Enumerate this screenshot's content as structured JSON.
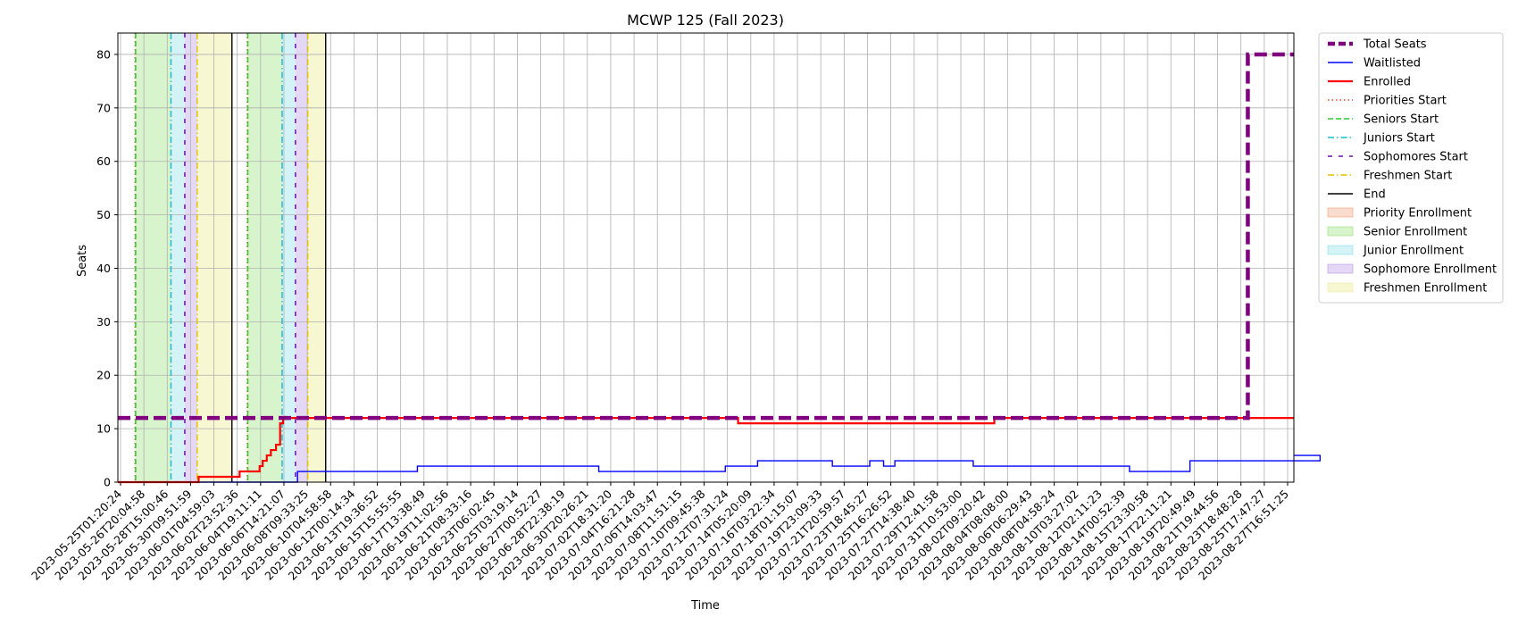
{
  "chart_data": {
    "type": "line",
    "title": "MCWP 125 (Fall 2023)",
    "xlabel": "Time",
    "ylabel": "Seats",
    "xlim": [
      "2023-05-25T01:20:24",
      "2023-08-28T16:51:25"
    ],
    "ylim": [
      0,
      84
    ],
    "yticks": [
      0,
      10,
      20,
      30,
      40,
      50,
      60,
      70,
      80
    ],
    "grid": true,
    "legend_position": "outside-right",
    "xtick_labels": [
      "2023-05-25T01:20:24",
      "2023-05-26T20:04:58",
      "2023-05-28T15:00:46",
      "2023-05-30T09:51:59",
      "2023-06-01T04:59:03",
      "2023-06-02T23:52:36",
      "2023-06-04T19:11:11",
      "2023-06-06T14:21:07",
      "2023-06-08T09:33:25",
      "2023-06-10T04:58:58",
      "2023-06-12T00:14:34",
      "2023-06-13T19:36:52",
      "2023-06-15T15:55:55",
      "2023-06-17T13:38:49",
      "2023-06-19T11:02:56",
      "2023-06-21T08:33:16",
      "2023-06-23T06:02:45",
      "2023-06-25T03:19:14",
      "2023-06-27T00:52:27",
      "2023-06-28T22:38:19",
      "2023-06-30T20:26:21",
      "2023-07-02T18:31:20",
      "2023-07-04T16:21:28",
      "2023-07-06T14:03:47",
      "2023-07-08T11:51:15",
      "2023-07-10T09:45:38",
      "2023-07-12T07:31:24",
      "2023-07-14T05:20:09",
      "2023-07-16T03:22:34",
      "2023-07-18T01:15:07",
      "2023-07-19T23:09:33",
      "2023-07-21T20:59:57",
      "2023-07-23T18:45:27",
      "2023-07-25T16:26:52",
      "2023-07-27T14:38:40",
      "2023-07-29T12:41:58",
      "2023-07-31T10:53:00",
      "2023-08-02T09:20:42",
      "2023-08-04T08:08:00",
      "2023-08-06T06:29:43",
      "2023-08-08T04:58:24",
      "2023-08-10T03:27:02",
      "2023-08-12T02:11:23",
      "2023-08-14T00:52:39",
      "2023-08-15T23:30:58",
      "2023-08-17T22:11:21",
      "2023-08-19T20:49:49",
      "2023-08-21T19:44:56",
      "2023-08-23T18:48:28",
      "2023-08-25T17:47:27",
      "2023-08-27T16:51:25"
    ],
    "series": [
      {
        "name": "Total Seats",
        "color": "#800080",
        "style": "dashed-thick",
        "points": [
          [
            "2023-05-25T01:20:24",
            12
          ],
          [
            "2023-08-24T23:00:00",
            12
          ],
          [
            "2023-08-24T23:00:00",
            80
          ],
          [
            "2023-08-28T16:51:25",
            80
          ]
        ]
      },
      {
        "name": "Waitlisted",
        "color": "#0000ff",
        "style": "solid",
        "points": [
          [
            "2023-05-25T01:20:24",
            0
          ],
          [
            "2023-06-08T16:00:00",
            0
          ],
          [
            "2023-06-08T16:00:00",
            2
          ],
          [
            "2023-06-18T10:00:00",
            2
          ],
          [
            "2023-06-18T10:00:00",
            3
          ],
          [
            "2023-07-03T04:00:00",
            3
          ],
          [
            "2023-07-03T04:00:00",
            2
          ],
          [
            "2023-07-13T11:00:00",
            2
          ],
          [
            "2023-07-13T11:00:00",
            3
          ],
          [
            "2023-07-16T02:00:00",
            3
          ],
          [
            "2023-07-16T02:00:00",
            4
          ],
          [
            "2023-07-22T04:00:00",
            4
          ],
          [
            "2023-07-22T04:00:00",
            3
          ],
          [
            "2023-07-25T05:00:00",
            3
          ],
          [
            "2023-07-25T05:00:00",
            4
          ],
          [
            "2023-07-26T08:00:00",
            4
          ],
          [
            "2023-07-26T08:00:00",
            3
          ],
          [
            "2023-07-27T06:00:00",
            3
          ],
          [
            "2023-07-27T06:00:00",
            4
          ],
          [
            "2023-08-02T15:00:00",
            4
          ],
          [
            "2023-08-02T15:00:00",
            3
          ],
          [
            "2023-08-15T08:00:00",
            3
          ],
          [
            "2023-08-15T08:00:00",
            2
          ],
          [
            "2023-08-20T06:00:00",
            2
          ],
          [
            "2023-08-20T06:00:00",
            4
          ],
          [
            "2023-08-30T20:00:00",
            4
          ],
          [
            "2023-08-30T20:00:00",
            5
          ],
          [
            "2023-08-28T16:51:25",
            5
          ]
        ]
      },
      {
        "name": "Enrolled",
        "color": "#ff0000",
        "style": "solid-thick",
        "points": [
          [
            "2023-05-25T01:20:24",
            0
          ],
          [
            "2023-05-31T15:00:00",
            0
          ],
          [
            "2023-05-31T15:00:00",
            1
          ],
          [
            "2023-06-03T23:00:00",
            1
          ],
          [
            "2023-06-03T23:00:00",
            2
          ],
          [
            "2023-06-05T14:00:00",
            2
          ],
          [
            "2023-06-05T14:00:00",
            3
          ],
          [
            "2023-06-05T20:00:00",
            3
          ],
          [
            "2023-06-05T20:00:00",
            4
          ],
          [
            "2023-06-06T04:00:00",
            4
          ],
          [
            "2023-06-06T04:00:00",
            5
          ],
          [
            "2023-06-06T12:00:00",
            5
          ],
          [
            "2023-06-06T12:00:00",
            6
          ],
          [
            "2023-06-06T22:00:00",
            6
          ],
          [
            "2023-06-06T22:00:00",
            7
          ],
          [
            "2023-06-07T06:00:00",
            7
          ],
          [
            "2023-06-07T06:00:00",
            11
          ],
          [
            "2023-06-07T12:00:00",
            11
          ],
          [
            "2023-06-07T12:00:00",
            12
          ],
          [
            "2023-07-14T12:00:00",
            12
          ],
          [
            "2023-07-14T12:00:00",
            11
          ],
          [
            "2023-08-04T08:08:00",
            11
          ],
          [
            "2023-08-04T08:08:00",
            12
          ],
          [
            "2023-08-28T16:51:25",
            12
          ]
        ]
      }
    ],
    "vlines": [
      {
        "name": "Priorities Start",
        "color": "#ff3d1f",
        "style": "dotted",
        "x": [
          "2023-05-26T11:00:00",
          "2023-06-04T14:00:00"
        ]
      },
      {
        "name": "Seniors Start",
        "color": "#2ecc2e",
        "style": "dashed",
        "x": [
          "2023-05-26T12:00:00",
          "2023-06-04T15:00:00"
        ]
      },
      {
        "name": "Juniors Start",
        "color": "#17becf",
        "style": "dashdot",
        "x": [
          "2023-05-29T09:00:00",
          "2023-06-07T10:00:00"
        ]
      },
      {
        "name": "Sophomores Start",
        "color": "#6a0dad",
        "style": "loosedash",
        "x": [
          "2023-05-30T12:00:00",
          "2023-06-08T12:00:00"
        ]
      },
      {
        "name": "Freshmen Start",
        "color": "#e5c100",
        "style": "dashdot",
        "x": [
          "2023-05-31T12:00:00",
          "2023-06-09T12:00:00"
        ]
      },
      {
        "name": "End",
        "color": "#000000",
        "style": "solid",
        "x": [
          "2023-06-03T08:00:00",
          "2023-06-10T23:00:00"
        ]
      }
    ],
    "bands": [
      {
        "name": "Priority Enrollment",
        "color": "#f08a5d",
        "opacity": 0.3,
        "ranges": [
          [
            "2023-05-26T11:00:00",
            "2023-05-26T12:00:00"
          ],
          [
            "2023-06-04T14:00:00",
            "2023-06-04T15:00:00"
          ]
        ]
      },
      {
        "name": "Senior Enrollment",
        "color": "#7ed957",
        "opacity": 0.3,
        "ranges": [
          [
            "2023-05-26T12:00:00",
            "2023-05-29T09:00:00"
          ],
          [
            "2023-06-04T15:00:00",
            "2023-06-07T10:00:00"
          ]
        ]
      },
      {
        "name": "Junior Enrollment",
        "color": "#6fd8e6",
        "opacity": 0.3,
        "ranges": [
          [
            "2023-05-29T09:00:00",
            "2023-05-30T12:00:00"
          ],
          [
            "2023-06-07T10:00:00",
            "2023-06-08T12:00:00"
          ]
        ]
      },
      {
        "name": "Sophomore Enrollment",
        "color": "#a97de0",
        "opacity": 0.3,
        "ranges": [
          [
            "2023-05-30T12:00:00",
            "2023-05-31T12:00:00"
          ],
          [
            "2023-06-08T12:00:00",
            "2023-06-09T12:00:00"
          ]
        ]
      },
      {
        "name": "Freshmen Enrollment",
        "color": "#eaea8f",
        "opacity": 0.4,
        "ranges": [
          [
            "2023-05-31T12:00:00",
            "2023-06-03T08:00:00"
          ],
          [
            "2023-06-09T12:00:00",
            "2023-06-10T23:00:00"
          ]
        ]
      }
    ]
  }
}
